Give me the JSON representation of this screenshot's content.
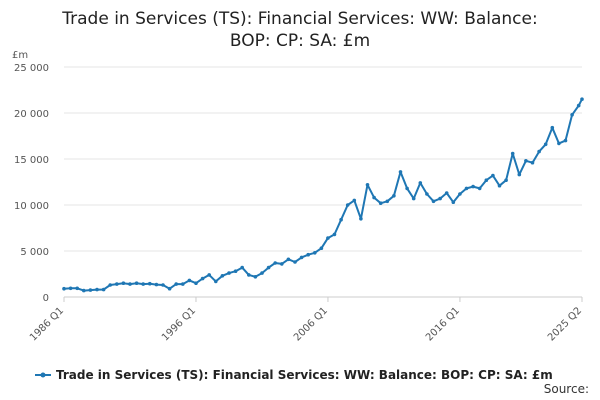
{
  "chart_data": {
    "type": "line",
    "title_lines": [
      "Trade in Services (TS): Financial Services: WW: Balance:",
      "BOP: CP: SA: £m"
    ],
    "ylabel": "£m",
    "ylim": [
      0,
      25000
    ],
    "yticks": [
      0,
      5000,
      10000,
      15000,
      20000,
      25000
    ],
    "ytick_labels": [
      "0",
      "5 000",
      "10 000",
      "15 000",
      "20 000",
      "25 000"
    ],
    "xlim": [
      "1986 Q1",
      "2025 Q2"
    ],
    "xtick_labels": [
      "1986 Q1",
      "1996 Q1",
      "2006 Q1",
      "2016 Q1",
      "2025 Q2"
    ],
    "grid": "horizontal",
    "legend": "bottom",
    "color": "#1f77b4",
    "series": [
      {
        "name": "Trade in Services (TS): Financial Services: WW: Balance: BOP: CP: SA: £m",
        "points": [
          [
            "1986 Q1",
            900
          ],
          [
            "1986 Q3",
            950
          ],
          [
            "1987 Q1",
            950
          ],
          [
            "1987 Q3",
            700
          ],
          [
            "1988 Q1",
            750
          ],
          [
            "1988 Q3",
            800
          ],
          [
            "1989 Q1",
            800
          ],
          [
            "1989 Q3",
            1300
          ],
          [
            "1990 Q1",
            1400
          ],
          [
            "1990 Q3",
            1500
          ],
          [
            "1991 Q1",
            1400
          ],
          [
            "1991 Q3",
            1500
          ],
          [
            "1992 Q1",
            1400
          ],
          [
            "1992 Q3",
            1450
          ],
          [
            "1993 Q1",
            1350
          ],
          [
            "1993 Q3",
            1300
          ],
          [
            "1994 Q1",
            900
          ],
          [
            "1994 Q3",
            1400
          ],
          [
            "1995 Q1",
            1400
          ],
          [
            "1995 Q3",
            1800
          ],
          [
            "1996 Q1",
            1500
          ],
          [
            "1996 Q3",
            2000
          ],
          [
            "1997 Q1",
            2400
          ],
          [
            "1997 Q3",
            1700
          ],
          [
            "1998 Q1",
            2300
          ],
          [
            "1998 Q3",
            2600
          ],
          [
            "1999 Q1",
            2800
          ],
          [
            "1999 Q3",
            3200
          ],
          [
            "2000 Q1",
            2400
          ],
          [
            "2000 Q3",
            2200
          ],
          [
            "2001 Q1",
            2600
          ],
          [
            "2001 Q3",
            3200
          ],
          [
            "2002 Q1",
            3700
          ],
          [
            "2002 Q3",
            3600
          ],
          [
            "2003 Q1",
            4100
          ],
          [
            "2003 Q3",
            3800
          ],
          [
            "2004 Q1",
            4300
          ],
          [
            "2004 Q3",
            4600
          ],
          [
            "2005 Q1",
            4800
          ],
          [
            "2005 Q3",
            5300
          ],
          [
            "2006 Q1",
            6400
          ],
          [
            "2006 Q3",
            6800
          ],
          [
            "2007 Q1",
            8400
          ],
          [
            "2007 Q3",
            10000
          ],
          [
            "2008 Q1",
            10500
          ],
          [
            "2008 Q3",
            8500
          ],
          [
            "2009 Q1",
            12200
          ],
          [
            "2009 Q3",
            10800
          ],
          [
            "2010 Q1",
            10200
          ],
          [
            "2010 Q3",
            10400
          ],
          [
            "2011 Q1",
            11000
          ],
          [
            "2011 Q3",
            13600
          ],
          [
            "2012 Q1",
            11800
          ],
          [
            "2012 Q3",
            10700
          ],
          [
            "2013 Q1",
            12400
          ],
          [
            "2013 Q3",
            11200
          ],
          [
            "2014 Q1",
            10400
          ],
          [
            "2014 Q3",
            10700
          ],
          [
            "2015 Q1",
            11300
          ],
          [
            "2015 Q3",
            10300
          ],
          [
            "2016 Q1",
            11200
          ],
          [
            "2016 Q3",
            11800
          ],
          [
            "2017 Q1",
            12000
          ],
          [
            "2017 Q3",
            11800
          ],
          [
            "2018 Q1",
            12700
          ],
          [
            "2018 Q3",
            13200
          ],
          [
            "2019 Q1",
            12100
          ],
          [
            "2019 Q3",
            12700
          ],
          [
            "2020 Q1",
            15600
          ],
          [
            "2020 Q3",
            13300
          ],
          [
            "2021 Q1",
            14800
          ],
          [
            "2021 Q3",
            14600
          ],
          [
            "2022 Q1",
            15800
          ],
          [
            "2022 Q3",
            16600
          ],
          [
            "2023 Q1",
            18400
          ],
          [
            "2023 Q3",
            16700
          ],
          [
            "2024 Q1",
            17000
          ],
          [
            "2024 Q3",
            19800
          ],
          [
            "2025 Q1",
            20800
          ],
          [
            "2025 Q2",
            21500
          ]
        ]
      }
    ],
    "legend_label": "Trade in Services (TS): Financial Services: WW: Balance: BOP: CP: SA: £m",
    "source_label": "Source:"
  }
}
